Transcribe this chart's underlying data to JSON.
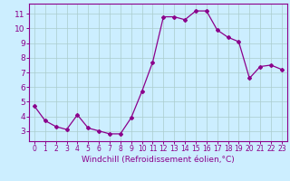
{
  "hours": [
    0,
    1,
    2,
    3,
    4,
    5,
    6,
    7,
    8,
    9,
    10,
    11,
    12,
    13,
    14,
    15,
    16,
    17,
    18,
    19,
    20,
    21,
    22,
    23
  ],
  "values": [
    4.7,
    3.7,
    3.3,
    3.1,
    4.1,
    3.2,
    3.0,
    2.8,
    2.8,
    3.9,
    5.7,
    7.7,
    10.8,
    10.8,
    10.6,
    11.2,
    11.2,
    9.9,
    9.4,
    9.1,
    6.6,
    7.4,
    7.5,
    7.2
  ],
  "line_color": "#8B008B",
  "marker": "D",
  "marker_size": 2.0,
  "bg_color": "#cceeff",
  "grid_color": "#aacccc",
  "xlabel": "Windchill (Refroidissement éolien,°C)",
  "xlim": [
    -0.5,
    23.5
  ],
  "ylim": [
    2.3,
    11.7
  ],
  "yticks": [
    3,
    4,
    5,
    6,
    7,
    8,
    9,
    10,
    11
  ],
  "xticks": [
    0,
    1,
    2,
    3,
    4,
    5,
    6,
    7,
    8,
    9,
    10,
    11,
    12,
    13,
    14,
    15,
    16,
    17,
    18,
    19,
    20,
    21,
    22,
    23
  ],
  "tick_color": "#8B008B",
  "spine_color": "#8B008B",
  "xlabel_color": "#8B008B",
  "xlabel_fontsize": 6.5,
  "tick_fontsize_x": 5.5,
  "tick_fontsize_y": 6.5
}
